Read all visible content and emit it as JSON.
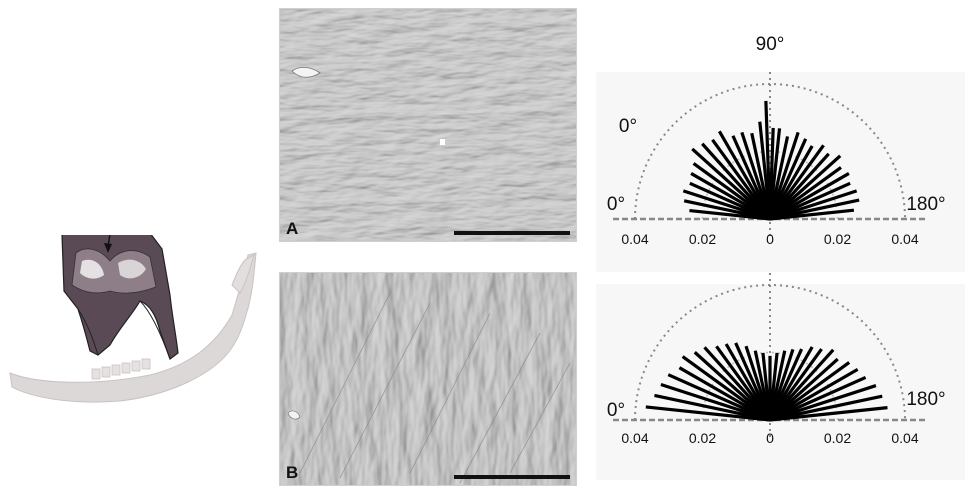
{
  "micrographs": {
    "a": {
      "letter": "A"
    },
    "b": {
      "letter": "B"
    }
  },
  "colors": {
    "tooth_enamel": "#5a4a55",
    "jaw_bone": "#ddd8d8",
    "micro_surface": "#c8c8c8",
    "rose_bars": "#000000",
    "rose_guides": "#888888"
  },
  "chart_data": [
    {
      "type": "rose",
      "top_label": "90°",
      "left_angle_label": "0°",
      "corner_label_left": "0°",
      "corner_label_right": "180°",
      "axis_tick_labels": [
        "0.04",
        "0.02",
        "0",
        "0.02",
        "0.04"
      ],
      "rmax": 0.04,
      "bars": [
        {
          "angle": 6,
          "value": 0.024
        },
        {
          "angle": 12,
          "value": 0.026
        },
        {
          "angle": 18,
          "value": 0.027
        },
        {
          "angle": 24,
          "value": 0.026
        },
        {
          "angle": 30,
          "value": 0.027
        },
        {
          "angle": 36,
          "value": 0.028
        },
        {
          "angle": 42,
          "value": 0.031
        },
        {
          "angle": 48,
          "value": 0.03
        },
        {
          "angle": 54,
          "value": 0.029
        },
        {
          "angle": 60,
          "value": 0.03
        },
        {
          "angle": 66,
          "value": 0.027
        },
        {
          "angle": 72,
          "value": 0.027
        },
        {
          "angle": 78,
          "value": 0.026
        },
        {
          "angle": 84,
          "value": 0.029
        },
        {
          "angle": 88,
          "value": 0.035
        },
        {
          "angle": 92,
          "value": 0.027
        },
        {
          "angle": 96,
          "value": 0.027
        },
        {
          "angle": 102,
          "value": 0.025
        },
        {
          "angle": 108,
          "value": 0.027
        },
        {
          "angle": 114,
          "value": 0.026
        },
        {
          "angle": 120,
          "value": 0.025
        },
        {
          "angle": 126,
          "value": 0.027
        },
        {
          "angle": 132,
          "value": 0.026
        },
        {
          "angle": 138,
          "value": 0.028
        },
        {
          "angle": 144,
          "value": 0.026
        },
        {
          "angle": 150,
          "value": 0.027
        },
        {
          "angle": 156,
          "value": 0.026
        },
        {
          "angle": 162,
          "value": 0.027
        },
        {
          "angle": 168,
          "value": 0.027
        },
        {
          "angle": 174,
          "value": 0.025
        }
      ]
    },
    {
      "type": "rose",
      "corner_label_left": "0°",
      "corner_label_right": "180°",
      "axis_tick_labels": [
        "0.04",
        "0.02",
        "0",
        "0.02",
        "0.04"
      ],
      "rmax": 0.04,
      "bars": [
        {
          "angle": 6,
          "value": 0.037
        },
        {
          "angle": 12,
          "value": 0.035
        },
        {
          "angle": 18,
          "value": 0.034
        },
        {
          "angle": 24,
          "value": 0.033
        },
        {
          "angle": 30,
          "value": 0.031
        },
        {
          "angle": 36,
          "value": 0.032
        },
        {
          "angle": 42,
          "value": 0.03
        },
        {
          "angle": 48,
          "value": 0.029
        },
        {
          "angle": 54,
          "value": 0.027
        },
        {
          "angle": 60,
          "value": 0.026
        },
        {
          "angle": 66,
          "value": 0.025
        },
        {
          "angle": 72,
          "value": 0.023
        },
        {
          "angle": 78,
          "value": 0.021
        },
        {
          "angle": 84,
          "value": 0.02
        },
        {
          "angle": 90,
          "value": 0.019
        },
        {
          "angle": 96,
          "value": 0.02
        },
        {
          "angle": 102,
          "value": 0.021
        },
        {
          "angle": 108,
          "value": 0.022
        },
        {
          "angle": 114,
          "value": 0.023
        },
        {
          "angle": 120,
          "value": 0.025
        },
        {
          "angle": 126,
          "value": 0.026
        },
        {
          "angle": 132,
          "value": 0.028
        },
        {
          "angle": 138,
          "value": 0.027
        },
        {
          "angle": 144,
          "value": 0.029
        },
        {
          "angle": 150,
          "value": 0.03
        },
        {
          "angle": 156,
          "value": 0.031
        },
        {
          "angle": 162,
          "value": 0.033
        },
        {
          "angle": 168,
          "value": 0.034
        },
        {
          "angle": 174,
          "value": 0.035
        }
      ]
    }
  ]
}
